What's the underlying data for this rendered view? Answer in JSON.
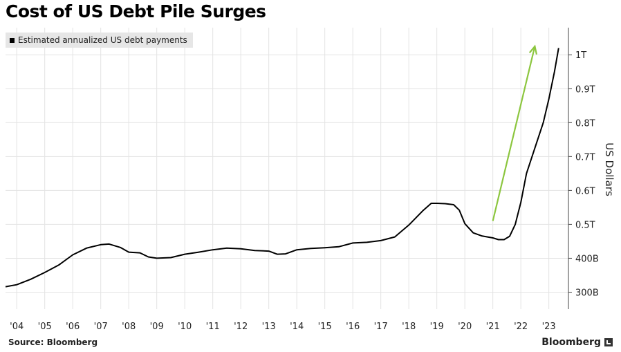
{
  "title": "Cost of US Debt Pile Surges",
  "legend": {
    "label": "Estimated annualized US debt payments"
  },
  "footer": {
    "source": "Source: Bloomberg",
    "brand": "Bloomberg"
  },
  "colors": {
    "line": "#000000",
    "arrow": "#8cc63f",
    "grid": "#e3e3e3",
    "legend_bg": "#e6e6e6"
  },
  "chart_data": {
    "type": "line",
    "title": "Cost of US Debt Pile Surges",
    "ylabel": "US Dollars",
    "ylim": [
      250,
      1080
    ],
    "xlim": [
      2003.6,
      2023.7
    ],
    "x_tick_values": [
      2004,
      2005,
      2006,
      2007,
      2008,
      2009,
      2010,
      2011,
      2012,
      2013,
      2014,
      2015,
      2016,
      2017,
      2018,
      2019,
      2020,
      2021,
      2022,
      2023
    ],
    "x_tick_labels": [
      "'04",
      "'05",
      "'06",
      "'07",
      "'08",
      "'09",
      "'10",
      "'11",
      "'12",
      "'13",
      "'14",
      "'15",
      "'16",
      "'17",
      "'18",
      "'19",
      "'20",
      "'21",
      "'22",
      "'23"
    ],
    "y_tick_values": [
      300,
      400,
      500,
      600,
      700,
      800,
      900,
      1000
    ],
    "y_tick_labels": [
      "300B",
      "400B",
      "0.5T",
      "0.6T",
      "0.7T",
      "0.8T",
      "0.9T",
      "1T"
    ],
    "grid": true,
    "legend_position": "top-left",
    "series": [
      {
        "name": "Estimated annualized US debt payments",
        "x": [
          2003.6,
          2004.0,
          2004.5,
          2005.0,
          2005.5,
          2006.0,
          2006.5,
          2007.0,
          2007.3,
          2007.7,
          2008.0,
          2008.4,
          2008.7,
          2009.0,
          2009.5,
          2010.0,
          2010.5,
          2011.0,
          2011.5,
          2012.0,
          2012.5,
          2013.0,
          2013.3,
          2013.6,
          2014.0,
          2014.5,
          2015.0,
          2015.5,
          2016.0,
          2016.5,
          2017.0,
          2017.5,
          2018.0,
          2018.5,
          2018.8,
          2019.0,
          2019.3,
          2019.6,
          2019.8,
          2020.0,
          2020.3,
          2020.6,
          2021.0,
          2021.2,
          2021.4,
          2021.6,
          2021.8,
          2022.0,
          2022.2,
          2022.4,
          2022.6,
          2022.8,
          2023.0,
          2023.2,
          2023.35
        ],
        "values": [
          316,
          322,
          338,
          358,
          380,
          410,
          430,
          440,
          442,
          432,
          418,
          416,
          404,
          400,
          402,
          412,
          418,
          425,
          430,
          428,
          423,
          421,
          412,
          413,
          425,
          429,
          431,
          434,
          445,
          447,
          452,
          463,
          498,
          540,
          562,
          562,
          561,
          558,
          542,
          502,
          475,
          466,
          460,
          455,
          455,
          465,
          500,
          565,
          650,
          700,
          750,
          800,
          870,
          950,
          1020
        ]
      }
    ],
    "annotations": [
      {
        "type": "arrow",
        "x_start": 2021.0,
        "y_start": 510,
        "x_end": 2022.5,
        "y_end": 1025
      }
    ]
  }
}
